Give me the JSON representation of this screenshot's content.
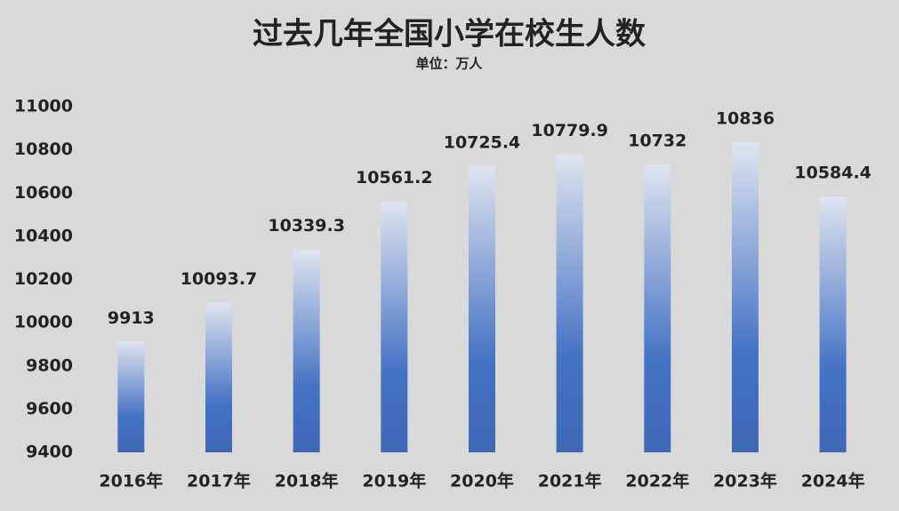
{
  "chart_data": {
    "type": "bar",
    "title": "过去几年全国小学在校生人数",
    "subtitle": "单位：万人",
    "categories": [
      "2016年",
      "2017年",
      "2018年",
      "2019年",
      "2020年",
      "2021年",
      "2022年",
      "2023年",
      "2024年"
    ],
    "values": [
      9913,
      10093.7,
      10339.3,
      10561.2,
      10725.4,
      10779.9,
      10732,
      10836,
      10584.4
    ],
    "color": "#4472c4",
    "ylim": [
      9400,
      11000
    ],
    "yticks": [
      9400,
      9600,
      9800,
      10000,
      10200,
      10400,
      10600,
      10800,
      11000
    ],
    "grid": false
  }
}
